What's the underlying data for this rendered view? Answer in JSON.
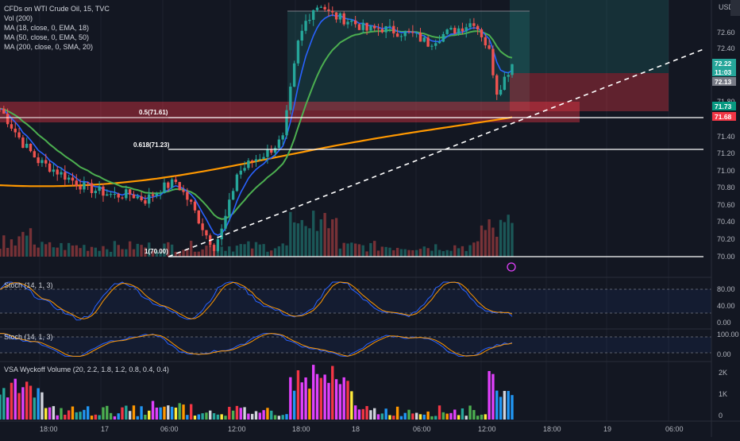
{
  "legend": {
    "title": "CFDs on WTI Crude Oil, 15, TVC",
    "lines": [
      "Vol (200)",
      "MA (18, close, 0, EMA, 18)",
      "MA (50, close, 0, EMA, 50)",
      "MA (200, close, 0, SMA, 20)"
    ],
    "stoch1": "Stoch (14, 1, 3)",
    "stoch2": "Stoch (14, 1, 3)",
    "vsa": "VSA Wyckoff Volume (20, 2.2, 1.8, 1.2, 0.8, 0.4, 0.4)"
  },
  "currency": "USD",
  "colors": {
    "background": "#131722",
    "up": "#26a69a",
    "down": "#ef5350",
    "ema18": "#2962ff",
    "ema50": "#4caf50",
    "sma200": "#ff9800",
    "stoch_k": "#2962ff",
    "stoch_d": "#ff9800"
  },
  "price_axis": {
    "ticks": [
      "72.60",
      "72.40",
      "71.80",
      "71.40",
      "71.20",
      "71.00",
      "70.80",
      "70.60",
      "70.40",
      "70.20",
      "70.00"
    ]
  },
  "price_tags": [
    {
      "text": "72.22",
      "bg": "#26a69a"
    },
    {
      "text": "11:03",
      "bg": "#26a69a"
    },
    {
      "text": "72.13",
      "bg": "#787b86"
    },
    {
      "text": "71.73",
      "bg": "#089981"
    },
    {
      "text": "71.68",
      "bg": "#f23645"
    }
  ],
  "fib_labels": [
    {
      "text": "0.5(71.61)"
    },
    {
      "text": "0.618(71.23)"
    },
    {
      "text": "1(70.00)"
    }
  ],
  "stoch_ticks": [
    "80.00",
    "40.00",
    "0.00"
  ],
  "stoch2_ticks": [
    "100.00",
    "0.00"
  ],
  "vsa_ticks": [
    "2K",
    "1K",
    "0"
  ],
  "time_axis": [
    "18:00",
    "17",
    "06:00",
    "12:00",
    "18:00",
    "18",
    "06:00",
    "12:00",
    "18:00",
    "19",
    "06:00"
  ],
  "chart_data": {
    "type": "candlestick",
    "title": "CFDs on WTI Crude Oil, 15, TVC",
    "xlabel": "",
    "ylabel": "USD",
    "ylim": [
      69.9,
      72.9
    ],
    "levels": [
      {
        "name": "0.5",
        "value": 71.61
      },
      {
        "name": "0.618",
        "value": 71.23
      },
      {
        "name": "1",
        "value": 70.0
      }
    ],
    "last_price": 72.22,
    "countdown": "11:03",
    "series": [
      {
        "name": "Vol (200)"
      },
      {
        "name": "MA (18, close, 0, EMA, 18)"
      },
      {
        "name": "MA (50, close, 0, EMA, 50)"
      },
      {
        "name": "MA (200, close, 0, SMA, 20)"
      }
    ],
    "close_path": [
      [
        0,
        71.7
      ],
      [
        6,
        71.3
      ],
      [
        10,
        71.1
      ],
      [
        14,
        71.0
      ],
      [
        18,
        70.9
      ],
      [
        22,
        70.8
      ],
      [
        26,
        70.75
      ],
      [
        30,
        70.7
      ],
      [
        34,
        70.72
      ],
      [
        38,
        70.65
      ],
      [
        42,
        70.78
      ],
      [
        46,
        70.86
      ],
      [
        50,
        70.6
      ],
      [
        54,
        70.25
      ],
      [
        56,
        70.12
      ],
      [
        58,
        70.3
      ],
      [
        60,
        70.6
      ],
      [
        62,
        70.95
      ],
      [
        66,
        71.1
      ],
      [
        70,
        71.2
      ],
      [
        74,
        71.35
      ],
      [
        76,
        71.9
      ],
      [
        78,
        72.45
      ],
      [
        80,
        72.7
      ],
      [
        82,
        72.85
      ],
      [
        84,
        72.9
      ],
      [
        86,
        72.8
      ],
      [
        88,
        72.75
      ],
      [
        92,
        72.7
      ],
      [
        96,
        72.6
      ],
      [
        100,
        72.62
      ],
      [
        104,
        72.58
      ],
      [
        108,
        72.55
      ],
      [
        112,
        72.45
      ],
      [
        116,
        72.55
      ],
      [
        120,
        72.62
      ],
      [
        124,
        72.7
      ],
      [
        126,
        72.55
      ],
      [
        128,
        72.35
      ],
      [
        130,
        71.9
      ],
      [
        132,
        72.05
      ],
      [
        134,
        72.22
      ]
    ]
  }
}
